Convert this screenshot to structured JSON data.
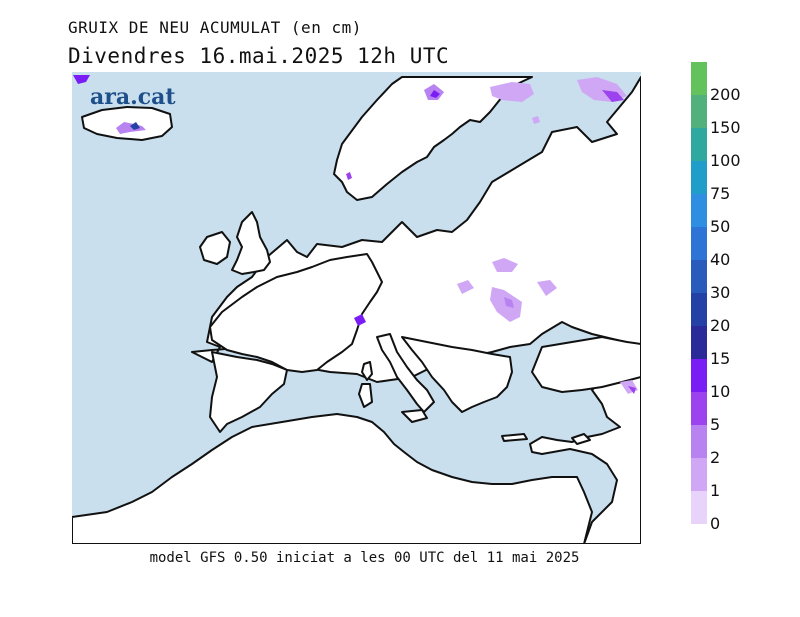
{
  "header": {
    "title": "GRUIX DE NEU ACUMULAT (en cm)",
    "subtitle": "Divendres  16.mai.2025  12h  UTC"
  },
  "footer": {
    "text": "model GFS 0.50 iniciat a les 00 UTC del 11 mai 2025"
  },
  "logo": {
    "text": "ara.cat"
  },
  "colors": {
    "sea": "#c9dfed",
    "land": "#ffffff",
    "coast": "#111111"
  },
  "legend": {
    "items": [
      {
        "value": "200",
        "color": "#64c25c"
      },
      {
        "value": "150",
        "color": "#52b07d"
      },
      {
        "value": "100",
        "color": "#2fa8a0"
      },
      {
        "value": "75",
        "color": "#1f9ec9"
      },
      {
        "value": "50",
        "color": "#2e8ee2"
      },
      {
        "value": "40",
        "color": "#2d74d6"
      },
      {
        "value": "30",
        "color": "#295bbd"
      },
      {
        "value": "20",
        "color": "#2442a6"
      },
      {
        "value": "15",
        "color": "#2a2a98"
      },
      {
        "value": "10",
        "color": "#7a1cf4"
      },
      {
        "value": "5",
        "color": "#9c42ee"
      },
      {
        "value": "2",
        "color": "#b882f0"
      },
      {
        "value": "1",
        "color": "#d0a7f5"
      },
      {
        "value": "0",
        "color": "#e8d4fb"
      }
    ]
  },
  "map_features": [
    {
      "name": "snow-area",
      "icon": "snow-patch"
    }
  ]
}
